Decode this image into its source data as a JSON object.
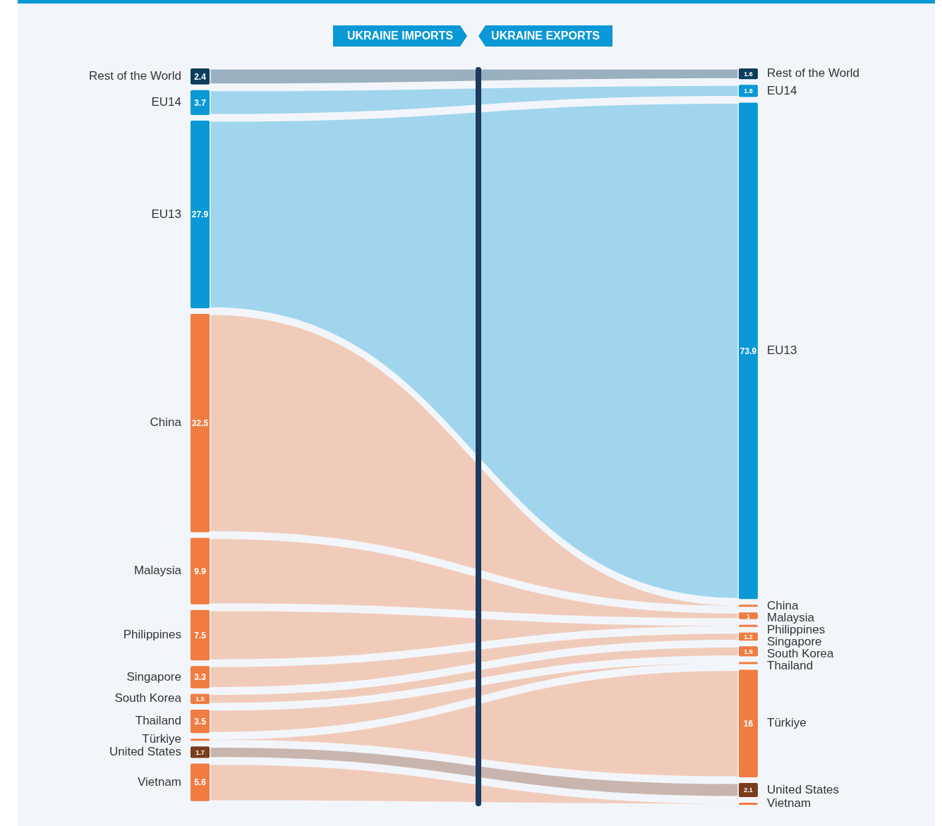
{
  "chart_data": {
    "type": "other",
    "categories": [
      "Rest of the World",
      "EU14",
      "EU13",
      "China",
      "Malaysia",
      "Philippines",
      "Singapore",
      "South Korea",
      "Thailand",
      "Türkiye",
      "United States",
      "Vietnam"
    ],
    "series": [
      {
        "name": "UKRAINE IMPORTS",
        "colors": [
          "#0d3d5c",
          "#0b98d6",
          "#0b98d6",
          "#f07c41",
          "#f07c41",
          "#f07c41",
          "#f07c41",
          "#f07c41",
          "#f07c41",
          "#f07c41",
          "#7a3d1c",
          "#f07c41"
        ],
        "values": [
          2.4,
          3.7,
          27.9,
          32.5,
          9.9,
          7.5,
          3.3,
          1.5,
          3.5,
          null,
          1.7,
          5.6
        ]
      },
      {
        "name": "UKRAINE EXPORTS",
        "colors": [
          "#0d3d5c",
          "#0b98d6",
          "#0b98d6",
          "#f07c41",
          "#f07c41",
          "#f07c41",
          "#f07c41",
          "#f07c41",
          "#f07c41",
          "#f07c41",
          "#7a3d1c",
          "#f07c41"
        ],
        "values": [
          1.6,
          1.8,
          73.9,
          null,
          1,
          null,
          1.2,
          1.5,
          null,
          16,
          2.1,
          null
        ]
      }
    ],
    "data_labels": true
  }
}
